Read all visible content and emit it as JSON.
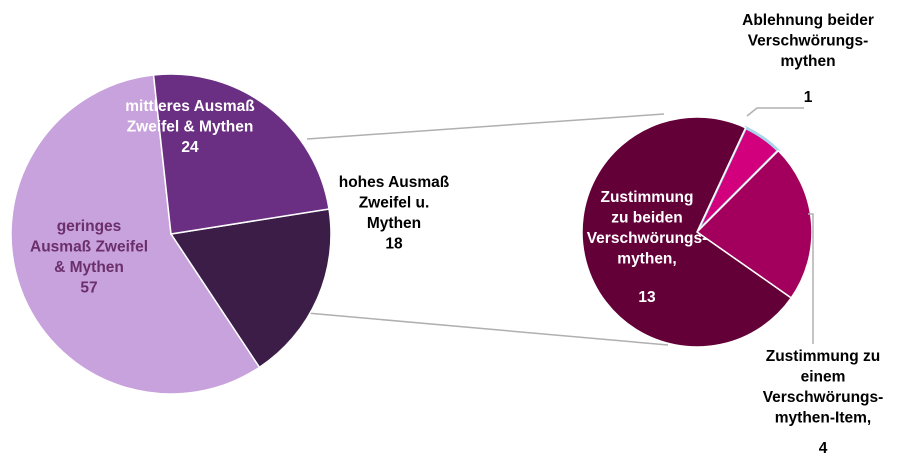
{
  "chart_data": [
    {
      "type": "pie",
      "title": "",
      "slices": [
        {
          "label_lines": [
            "hohes Ausmaß",
            "Zweifel u.",
            "Mythen"
          ],
          "value": 18,
          "value_text": "18",
          "color": "#3b1d47",
          "label_color": "#000000"
        },
        {
          "label_lines": [
            "geringes",
            "Ausmaß Zweifel",
            "& Mythen"
          ],
          "value": 57,
          "value_text": "57",
          "color": "#c7a2dc",
          "label_color": "#6b2f6b"
        },
        {
          "label_lines": [
            "mittleres Ausmaß",
            "Zweifel & Mythen"
          ],
          "value": 24,
          "value_text": "24",
          "color": "#6a2f82",
          "label_color": "#ffffff"
        }
      ]
    },
    {
      "type": "pie",
      "title": "",
      "slices": [
        {
          "label_lines": [
            "Ablehnung beider",
            "Verschwörungs-",
            "mythen"
          ],
          "value": 1,
          "value_text": "1",
          "color": "#d3007d",
          "label_color": "#000000"
        },
        {
          "label_lines": [
            "Zustimmung zu",
            "einem",
            "Verschwörungs-",
            "mythen-Item,"
          ],
          "value": 4,
          "value_text": "4",
          "color": "#a3005e",
          "label_color": "#000000"
        },
        {
          "label_lines": [
            "Zustimmung",
            "zu beiden",
            "Verschwörungs-",
            "mythen,"
          ],
          "value": 13,
          "value_text": "13",
          "color": "#640038",
          "label_color": "#ffffff"
        }
      ]
    }
  ],
  "colors": {
    "connector": "#b0b0b0",
    "highlight_edge": "#a9d6ea"
  }
}
